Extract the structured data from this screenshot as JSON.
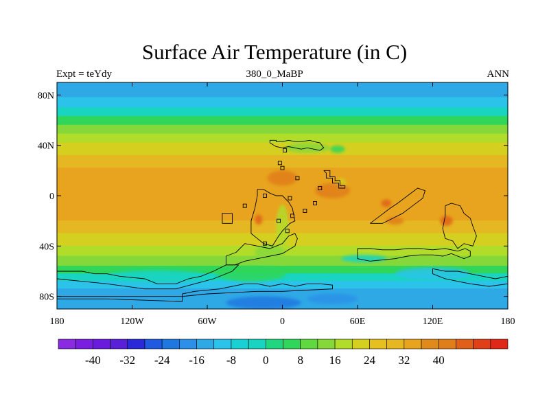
{
  "title": "Surface Air Temperature (in C)",
  "subtitle_left": "Expt = teYdy",
  "subtitle_center": "380_0_MaBP",
  "subtitle_right": "ANN",
  "map": {
    "lon_range": [
      -180,
      180
    ],
    "lat_range": [
      -90,
      90
    ],
    "lat_ticks": [
      {
        "value": 80,
        "label": "80N"
      },
      {
        "value": 40,
        "label": "40N"
      },
      {
        "value": 0,
        "label": "0"
      },
      {
        "value": -40,
        "label": "40S"
      },
      {
        "value": -80,
        "label": "80S"
      }
    ],
    "lon_ticks": [
      {
        "value": -180,
        "label": "180"
      },
      {
        "value": -120,
        "label": "120W"
      },
      {
        "value": -60,
        "label": "60W"
      },
      {
        "value": 0,
        "label": "0"
      },
      {
        "value": 60,
        "label": "60E"
      },
      {
        "value": 120,
        "label": "120E"
      },
      {
        "value": 180,
        "label": "180"
      }
    ],
    "zonal_bands": [
      {
        "lat": [
          78,
          90
        ],
        "color": "#2fa8e6"
      },
      {
        "lat": [
          70,
          78
        ],
        "color": "#2cc3ea"
      },
      {
        "lat": [
          63,
          70
        ],
        "color": "#18d4c0"
      },
      {
        "lat": [
          56,
          63
        ],
        "color": "#2fd65a"
      },
      {
        "lat": [
          49,
          56
        ],
        "color": "#86d83a"
      },
      {
        "lat": [
          42,
          49
        ],
        "color": "#b2dc2a"
      },
      {
        "lat": [
          32,
          42
        ],
        "color": "#d5d020"
      },
      {
        "lat": [
          22,
          32
        ],
        "color": "#e5b722"
      },
      {
        "lat": [
          -20,
          22
        ],
        "color": "#e8a41e"
      },
      {
        "lat": [
          -30,
          -20
        ],
        "color": "#e5b722"
      },
      {
        "lat": [
          -40,
          -30
        ],
        "color": "#d5d020"
      },
      {
        "lat": [
          -48,
          -40
        ],
        "color": "#b2dc2a"
      },
      {
        "lat": [
          -56,
          -48
        ],
        "color": "#86d83a"
      },
      {
        "lat": [
          -62,
          -56
        ],
        "color": "#2fd65a"
      },
      {
        "lat": [
          -68,
          -62
        ],
        "color": "#18d4c0"
      },
      {
        "lat": [
          -74,
          -68
        ],
        "color": "#2cc3ea"
      },
      {
        "lat": [
          -90,
          -74
        ],
        "color": "#2fa8e6"
      }
    ],
    "warm_patches": [
      {
        "lon": -19,
        "lat": -19,
        "rx": 3,
        "ry": 4,
        "color": "#e0601a"
      },
      {
        "lon": 83,
        "lat": -6,
        "rx": 4,
        "ry": 3,
        "color": "#e0601a"
      },
      {
        "lon": 131,
        "lat": -20,
        "rx": 5,
        "ry": 4,
        "color": "#e0601a"
      },
      {
        "lon": 90,
        "lat": -20,
        "rx": 7,
        "ry": 3,
        "color": "#e07e1a"
      },
      {
        "lon": 0,
        "lat": 14,
        "rx": 12,
        "ry": 6,
        "color": "#e07e1a"
      },
      {
        "lon": 40,
        "lat": 4,
        "rx": 14,
        "ry": 6,
        "color": "#e07e1a"
      }
    ],
    "cold_patches": [
      {
        "lon": 20,
        "lat": 38,
        "rx": 18,
        "ry": 4,
        "color": "#86d83a"
      },
      {
        "lon": 44,
        "lat": 37,
        "rx": 6,
        "ry": 3,
        "color": "#2fd65a"
      },
      {
        "lon": 47,
        "lat": 8,
        "rx": 4,
        "ry": 6,
        "color": "#d5d020"
      },
      {
        "lon": 0,
        "lat": -25,
        "rx": 5,
        "ry": 18,
        "color": "#b2dc2a"
      },
      {
        "lon": -10,
        "lat": -45,
        "rx": 12,
        "ry": 6,
        "color": "#86d83a"
      },
      {
        "lon": -25,
        "lat": -62,
        "rx": 28,
        "ry": 6,
        "color": "#2fd65a"
      },
      {
        "lon": -100,
        "lat": -64,
        "rx": 40,
        "ry": 5,
        "color": "#18d4c0"
      },
      {
        "lon": 65,
        "lat": -50,
        "rx": 18,
        "ry": 3,
        "color": "#18d4c0"
      },
      {
        "lon": 120,
        "lat": -62,
        "rx": 30,
        "ry": 5,
        "color": "#2cc3ea"
      },
      {
        "lon": -15,
        "lat": -85,
        "rx": 30,
        "ry": 5,
        "color": "#1e78e0"
      },
      {
        "lon": 40,
        "lat": -82,
        "rx": 20,
        "ry": 4,
        "color": "#2c90e8"
      }
    ],
    "land_outlines": [
      [
        [
          -10,
          42
        ],
        [
          -10,
          44
        ],
        [
          -5,
          44
        ],
        [
          -5,
          43
        ],
        [
          0,
          43
        ],
        [
          5,
          44
        ],
        [
          10,
          43
        ],
        [
          15,
          43
        ],
        [
          22,
          44
        ],
        [
          25,
          43
        ],
        [
          30,
          42
        ],
        [
          33,
          38
        ],
        [
          30,
          36
        ],
        [
          25,
          37
        ],
        [
          20,
          38
        ],
        [
          15,
          37
        ],
        [
          10,
          38
        ],
        [
          5,
          39
        ],
        [
          0,
          38
        ],
        [
          -5,
          39
        ],
        [
          -10,
          42
        ]
      ],
      [
        [
          33,
          20
        ],
        [
          38,
          20
        ],
        [
          38,
          15
        ],
        [
          42,
          15
        ],
        [
          42,
          12
        ],
        [
          46,
          12
        ],
        [
          46,
          8
        ],
        [
          50,
          8
        ],
        [
          50,
          6
        ],
        [
          45,
          6
        ],
        [
          45,
          10
        ],
        [
          40,
          10
        ],
        [
          40,
          14
        ],
        [
          35,
          14
        ],
        [
          35,
          18
        ],
        [
          33,
          20
        ]
      ],
      [
        [
          -20,
          5
        ],
        [
          -15,
          5
        ],
        [
          -10,
          2
        ],
        [
          -5,
          0
        ],
        [
          0,
          0
        ],
        [
          5,
          -5
        ],
        [
          8,
          -10
        ],
        [
          10,
          -20
        ],
        [
          6,
          -22
        ],
        [
          3,
          -25
        ],
        [
          0,
          -28
        ],
        [
          -3,
          -32
        ],
        [
          -8,
          -40
        ],
        [
          -15,
          -38
        ],
        [
          -20,
          -34
        ],
        [
          -25,
          -30
        ],
        [
          -25,
          -20
        ],
        [
          -22,
          -10
        ],
        [
          -20,
          0
        ],
        [
          -20,
          5
        ]
      ],
      [
        [
          -37,
          -45
        ],
        [
          -45,
          -48
        ],
        [
          -45,
          -55
        ],
        [
          -38,
          -55
        ],
        [
          -30,
          -52
        ],
        [
          -20,
          -50
        ],
        [
          -10,
          -48
        ],
        [
          0,
          -46
        ],
        [
          5,
          -43
        ],
        [
          10,
          -40
        ],
        [
          12,
          -34
        ],
        [
          10,
          -30
        ],
        [
          5,
          -32
        ],
        [
          0,
          -38
        ],
        [
          -10,
          -42
        ],
        [
          -20,
          -40
        ],
        [
          -30,
          -38
        ],
        [
          -37,
          -45
        ]
      ],
      [
        [
          -40,
          -14
        ],
        [
          -48,
          -14
        ],
        [
          -48,
          -22
        ],
        [
          -40,
          -22
        ],
        [
          -40,
          -14
        ]
      ],
      [
        [
          70,
          -22
        ],
        [
          78,
          -16
        ],
        [
          86,
          -10
        ],
        [
          92,
          -6
        ],
        [
          100,
          0
        ],
        [
          108,
          6
        ],
        [
          114,
          4
        ],
        [
          112,
          -2
        ],
        [
          104,
          -8
        ],
        [
          96,
          -14
        ],
        [
          88,
          -18
        ],
        [
          80,
          -22
        ],
        [
          70,
          -22
        ]
      ],
      [
        [
          130,
          -8
        ],
        [
          135,
          -6
        ],
        [
          142,
          -8
        ],
        [
          145,
          -14
        ],
        [
          150,
          -18
        ],
        [
          152,
          -24
        ],
        [
          155,
          -32
        ],
        [
          152,
          -40
        ],
        [
          145,
          -38
        ],
        [
          140,
          -42
        ],
        [
          136,
          -36
        ],
        [
          130,
          -34
        ],
        [
          128,
          -26
        ],
        [
          130,
          -16
        ],
        [
          130,
          -8
        ]
      ],
      [
        [
          60,
          -42
        ],
        [
          60,
          -50
        ],
        [
          70,
          -52
        ],
        [
          80,
          -51
        ],
        [
          90,
          -50
        ],
        [
          100,
          -48
        ],
        [
          110,
          -47
        ],
        [
          120,
          -47
        ],
        [
          128,
          -48
        ],
        [
          135,
          -46
        ],
        [
          140,
          -48
        ],
        [
          145,
          -50
        ],
        [
          150,
          -48
        ],
        [
          150,
          -44
        ],
        [
          146,
          -42
        ],
        [
          140,
          -44
        ],
        [
          130,
          -42
        ],
        [
          120,
          -43
        ],
        [
          110,
          -42
        ],
        [
          100,
          -42
        ],
        [
          90,
          -43
        ],
        [
          80,
          -43
        ],
        [
          70,
          -42
        ],
        [
          60,
          -42
        ]
      ],
      [
        [
          -180,
          -60
        ],
        [
          -160,
          -60
        ],
        [
          -150,
          -62
        ],
        [
          -140,
          -62
        ],
        [
          -130,
          -64
        ],
        [
          -110,
          -66
        ],
        [
          -100,
          -70
        ],
        [
          -85,
          -70
        ],
        [
          -75,
          -66
        ],
        [
          -65,
          -64
        ],
        [
          -55,
          -60
        ],
        [
          -45,
          -55
        ],
        [
          -35,
          -55
        ],
        [
          -40,
          -60
        ],
        [
          -55,
          -66
        ],
        [
          -70,
          -70
        ],
        [
          -85,
          -74
        ],
        [
          -110,
          -74
        ],
        [
          -140,
          -70
        ],
        [
          -160,
          -68
        ],
        [
          -180,
          -66
        ]
      ],
      [
        [
          -180,
          -82
        ],
        [
          -140,
          -82
        ],
        [
          -110,
          -83
        ],
        [
          -80,
          -84
        ],
        [
          -80,
          -80
        ],
        [
          -110,
          -80
        ],
        [
          -140,
          -80
        ],
        [
          -180,
          -80
        ]
      ],
      [
        [
          -80,
          -78
        ],
        [
          -70,
          -76
        ],
        [
          -50,
          -74
        ],
        [
          -40,
          -72
        ],
        [
          -30,
          -70
        ],
        [
          -20,
          -70
        ],
        [
          -10,
          -72
        ],
        [
          0,
          -70
        ],
        [
          10,
          -72
        ],
        [
          20,
          -70
        ],
        [
          30,
          -70
        ],
        [
          40,
          -71
        ],
        [
          40,
          -74
        ],
        [
          20,
          -75
        ],
        [
          0,
          -76
        ],
        [
          -20,
          -76
        ],
        [
          -40,
          -77
        ],
        [
          -60,
          -78
        ],
        [
          -80,
          -80
        ],
        [
          -80,
          -78
        ]
      ],
      [
        [
          120,
          -58
        ],
        [
          130,
          -60
        ],
        [
          140,
          -60
        ],
        [
          150,
          -62
        ],
        [
          160,
          -64
        ],
        [
          170,
          -66
        ],
        [
          180,
          -64
        ],
        [
          180,
          -70
        ],
        [
          165,
          -72
        ],
        [
          150,
          -70
        ],
        [
          140,
          -68
        ],
        [
          130,
          -66
        ],
        [
          120,
          -62
        ],
        [
          120,
          -58
        ]
      ]
    ],
    "islands": [
      [
        -3,
        -20
      ],
      [
        -14,
        -38
      ],
      [
        -14,
        0
      ],
      [
        -30,
        -8
      ],
      [
        8,
        -16
      ],
      [
        4,
        -28
      ],
      [
        0,
        22
      ],
      [
        -2,
        26
      ],
      [
        6,
        -2
      ],
      [
        12,
        14
      ],
      [
        26,
        -6
      ],
      [
        30,
        6
      ],
      [
        18,
        -12
      ],
      [
        2,
        36
      ]
    ],
    "outline_color": "#000000"
  },
  "colorbar": {
    "levels": [
      "-40",
      "-32",
      "-24",
      "-16",
      "-8",
      "0",
      "8",
      "16",
      "24",
      "32",
      "40"
    ],
    "colors": [
      "#8a2be2",
      "#7a1fe0",
      "#6a1cdc",
      "#5a20d8",
      "#2a2ad8",
      "#1f5ae0",
      "#1e78e0",
      "#2c90e8",
      "#2fa8e6",
      "#2cc3ea",
      "#19d0d4",
      "#18d4c0",
      "#22d680",
      "#2fd65a",
      "#60d840",
      "#86d83a",
      "#b2dc2a",
      "#d5d020",
      "#e5c020",
      "#e5b722",
      "#e8a41e",
      "#e08a1c",
      "#e07e1a",
      "#e0601a",
      "#e04018",
      "#e02818"
    ]
  }
}
